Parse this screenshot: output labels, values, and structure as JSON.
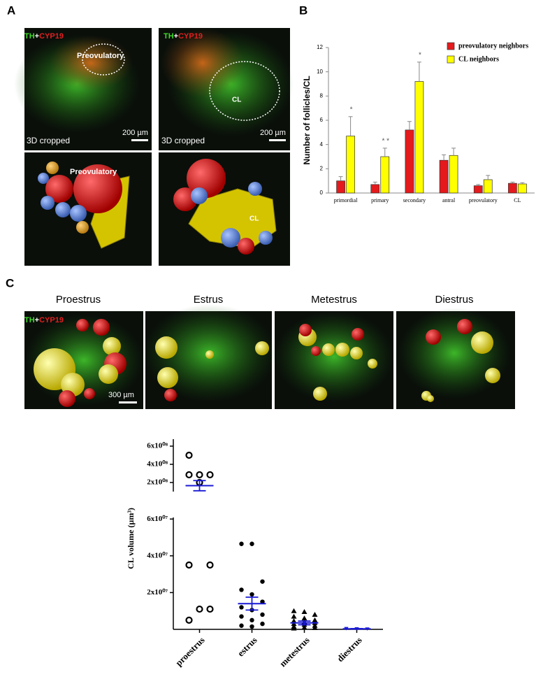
{
  "panel_labels": [
    "A",
    "B",
    "C"
  ],
  "panel_a": {
    "stain": [
      "TH",
      "+",
      "CYP19"
    ],
    "top_left_label": "Preovulatory",
    "cropped": "3D cropped",
    "scale": "200 µm",
    "top_right_label": "CL",
    "bottom_left_label": "Preovulatory",
    "bottom_right_label": "CL"
  },
  "panel_c": {
    "stages": [
      "Proestrus",
      "Estrus",
      "Metestrus",
      "Diestrus"
    ],
    "stain": [
      "TH",
      "+",
      "CYP19"
    ],
    "scale": "300 µm"
  },
  "chart_data": [
    {
      "type": "bar",
      "y_label": "Number of follicles/CL",
      "categories": [
        "primordial",
        "primary",
        "secondary",
        "antral",
        "preovulatory",
        "CL"
      ],
      "series": [
        {
          "name": "preovulatory neighbors",
          "color": "#e41a1c",
          "values": [
            1.0,
            0.7,
            5.2,
            2.7,
            0.6,
            0.8
          ],
          "errors": [
            0.35,
            0.2,
            0.7,
            0.45,
            0.1,
            0.1
          ]
        },
        {
          "name": "CL neighbors",
          "color": "#ffff00",
          "values": [
            4.7,
            3.0,
            9.2,
            3.1,
            1.1,
            0.75
          ],
          "errors": [
            1.6,
            0.7,
            1.6,
            0.6,
            0.35,
            0.1
          ]
        }
      ],
      "annotations": [
        "*",
        "* *",
        "*",
        null,
        null,
        null
      ],
      "ylim": [
        0,
        12
      ],
      "yticks": [
        0,
        2,
        4,
        6,
        8,
        10,
        12
      ]
    },
    {
      "type": "scatter",
      "y_label": "CL volume (µm³)",
      "categories": [
        "proestrus",
        "estrus",
        "metestrus",
        "diestrus"
      ],
      "values": [
        [
          500000000,
          285000000,
          285000000,
          285000000,
          200000000,
          35000000,
          35000000,
          11000000,
          11000000,
          5000000
        ],
        [
          46500000,
          46500000,
          26000000,
          21500000,
          19000000,
          15000000,
          12000000,
          10500000,
          8000000,
          7000000,
          5000000,
          3000000,
          2000000,
          1500000
        ],
        [
          10000000,
          9500000,
          8000000,
          7000000,
          6000000,
          5000000,
          4500000,
          4000000,
          3500000,
          3000000,
          2500000,
          2000000,
          1500000,
          1000000,
          800000,
          500000
        ],
        [
          500000,
          400000,
          300000,
          200000,
          200000,
          100000
        ]
      ],
      "markers": [
        "open-circle",
        "circle",
        "triangle",
        "inverted-triangle"
      ],
      "colors": [
        "#000000",
        "#000000",
        "#000000",
        "#1a1ad6"
      ],
      "means": [
        165000000,
        14000000,
        3500000,
        300000
      ],
      "errors": [
        56000000,
        3500000,
        1000000,
        100000
      ],
      "mean_color": "#1a1ad6",
      "ylim": [
        0,
        62000000
      ],
      "yticks": [
        {
          "value": 20000000,
          "label": "2x10⁰⁷"
        },
        {
          "value": 40000000,
          "label": "4x10⁰⁷"
        },
        {
          "value": 60000000,
          "label": "6x10⁰⁷"
        }
      ],
      "ylim_upper": [
        100000000,
        700000000
      ],
      "yticks_upper": [
        {
          "value": 200000000,
          "label": "2x10⁰⁸"
        },
        {
          "value": 400000000,
          "label": "4x10⁰⁸"
        },
        {
          "value": 600000000,
          "label": "6x10⁰⁸"
        }
      ]
    }
  ]
}
